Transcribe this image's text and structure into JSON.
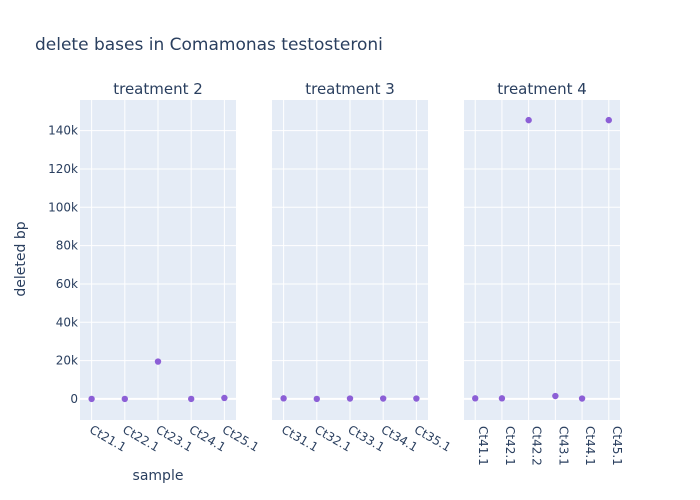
{
  "chart_data": {
    "type": "scatter",
    "title": "delete bases in Comamonas testosteroni",
    "xlabel": "sample",
    "ylabel": "deleted bp",
    "ylim": [
      -11000,
      156000
    ],
    "y_ticks": [
      0,
      20000,
      40000,
      60000,
      80000,
      100000,
      120000,
      140000
    ],
    "y_tick_labels": [
      "0",
      "20k",
      "40k",
      "60k",
      "80k",
      "100k",
      "120k",
      "140k"
    ],
    "grid": true,
    "marker_color": "#8c5fd6",
    "panels": [
      {
        "title": "treatment 2",
        "categories": [
          "Ct21.1",
          "Ct22.1",
          "Ct23.1",
          "Ct24.1",
          "Ct25.1"
        ],
        "values": [
          0,
          0,
          19500,
          0,
          500
        ]
      },
      {
        "title": "treatment 3",
        "categories": [
          "Ct31.1",
          "Ct32.1",
          "Ct33.1",
          "Ct34.1",
          "Ct35.1"
        ],
        "values": [
          300,
          0,
          200,
          200,
          200
        ]
      },
      {
        "title": "treatment 4",
        "categories": [
          "Ct41.1",
          "Ct42.1",
          "Ct42.2",
          "Ct43.1",
          "Ct44.1",
          "Ct45.1"
        ],
        "values": [
          300,
          300,
          145500,
          1500,
          200,
          145500
        ]
      }
    ]
  }
}
